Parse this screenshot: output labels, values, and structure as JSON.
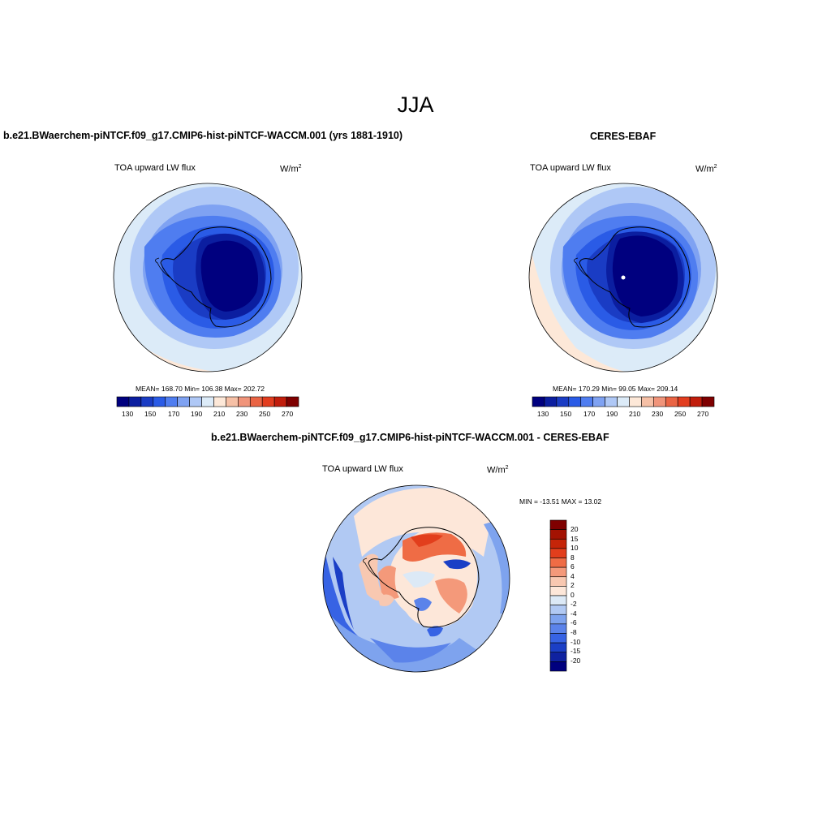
{
  "main_title": "JJA",
  "colors": {
    "model_levels": [
      "#00007f",
      "#0b1ea0",
      "#1a3cc4",
      "#2a5be6",
      "#4f7df0",
      "#7fa2f2",
      "#afc8f6",
      "#dcebf8",
      "#fde8d8",
      "#f6c0a6",
      "#f0947a",
      "#ea6444",
      "#e23d1f",
      "#c11d0c",
      "#7f0000"
    ],
    "diff_levels": [
      "#7f0000",
      "#a31202",
      "#c52509",
      "#e23e1c",
      "#ef6c45",
      "#f4997a",
      "#f8c8b1",
      "#fde7d9",
      "#dce9f6",
      "#b1c9f3",
      "#7ea3ee",
      "#5b83ea",
      "#3763e4",
      "#1b3fc6",
      "#0f22a0",
      "#00007f"
    ]
  },
  "left_panel": {
    "title": "b.e21.BWaerchem-piNTCF.f09_g17.CMIP6-hist-piNTCF-WACCM.001 (yrs 1881-1910)",
    "variable": "TOA upward LW flux",
    "unit": "W/m",
    "unit_sup": "2",
    "stats": "MEAN= 168.70  Min= 106.38  Max= 202.72",
    "colorbar_ticks": [
      "130",
      "150",
      "170",
      "190",
      "210",
      "230",
      "250",
      "270"
    ]
  },
  "right_panel": {
    "title": "CERES-EBAF",
    "variable": "TOA upward LW flux",
    "unit": "W/m",
    "unit_sup": "2",
    "stats": "MEAN= 170.29  Min=  99.05  Max= 209.14",
    "colorbar_ticks": [
      "130",
      "150",
      "170",
      "190",
      "210",
      "230",
      "250",
      "270"
    ]
  },
  "diff_panel": {
    "title": "b.e21.BWaerchem-piNTCF.f09_g17.CMIP6-hist-piNTCF-WACCM.001 - CERES-EBAF",
    "variable": "TOA upward LW flux",
    "unit": "W/m",
    "unit_sup": "2",
    "stats": "MIN = -13.51 MAX =  13.02",
    "colorbar_ticks": [
      "20",
      "15",
      "10",
      "8",
      "6",
      "4",
      "2",
      "0",
      "-2",
      "-4",
      "-6",
      "-8",
      "-10",
      "-15",
      "-20"
    ]
  }
}
